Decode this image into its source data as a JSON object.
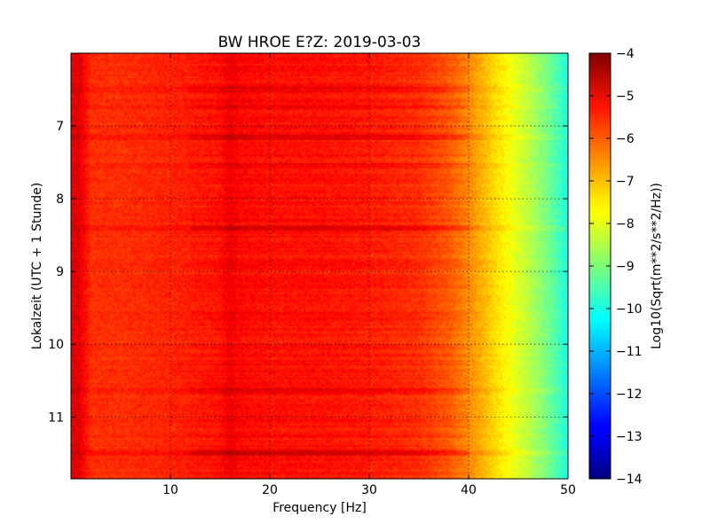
{
  "chart_data": {
    "type": "heatmap",
    "title": "BW HROE E?Z: 2019-03-03",
    "xlabel": "Frequency [Hz]",
    "ylabel": "Lokalzeit (UTC + 1 Stunde)",
    "xlim": [
      0,
      50
    ],
    "ylim": [
      6.0,
      11.85
    ],
    "y_inverted": true,
    "x_ticks": [
      10,
      20,
      30,
      40,
      50
    ],
    "y_ticks": [
      7,
      8,
      9,
      10,
      11
    ],
    "grid": true,
    "colormap": "jet",
    "colorbar": {
      "label": "Log10(Sqrt(m**2/s**2/Hz))",
      "range": [
        -14,
        -4
      ],
      "ticks": [
        -4,
        -5,
        -6,
        -7,
        -8,
        -9,
        -10,
        -11,
        -12,
        -13,
        -14
      ],
      "tick_labels": [
        "−4",
        "−5",
        "−6",
        "−7",
        "−8",
        "−9",
        "−10",
        "−11",
        "−12",
        "−13",
        "−14"
      ]
    },
    "frequency_profile": {
      "frequency_hz": [
        0,
        0.5,
        1,
        2,
        5,
        10,
        15,
        16,
        17,
        20,
        25,
        30,
        35,
        38,
        40,
        42,
        44,
        46,
        48,
        50
      ],
      "log10_amplitude": [
        -5.2,
        -4.9,
        -5.1,
        -5.7,
        -5.7,
        -5.6,
        -5.4,
        -5.1,
        -5.3,
        -5.4,
        -5.4,
        -5.5,
        -5.7,
        -6.1,
        -6.6,
        -7.2,
        -7.8,
        -8.4,
        -9.1,
        -10.0
      ]
    },
    "time_bands": {
      "local_time_hours": [
        6.5,
        6.75,
        7.15,
        7.55,
        8.4,
        10.65,
        11.5
      ],
      "log10_amplitude_offset": [
        0.35,
        0.25,
        0.5,
        0.3,
        0.45,
        0.4,
        0.5
      ]
    }
  }
}
